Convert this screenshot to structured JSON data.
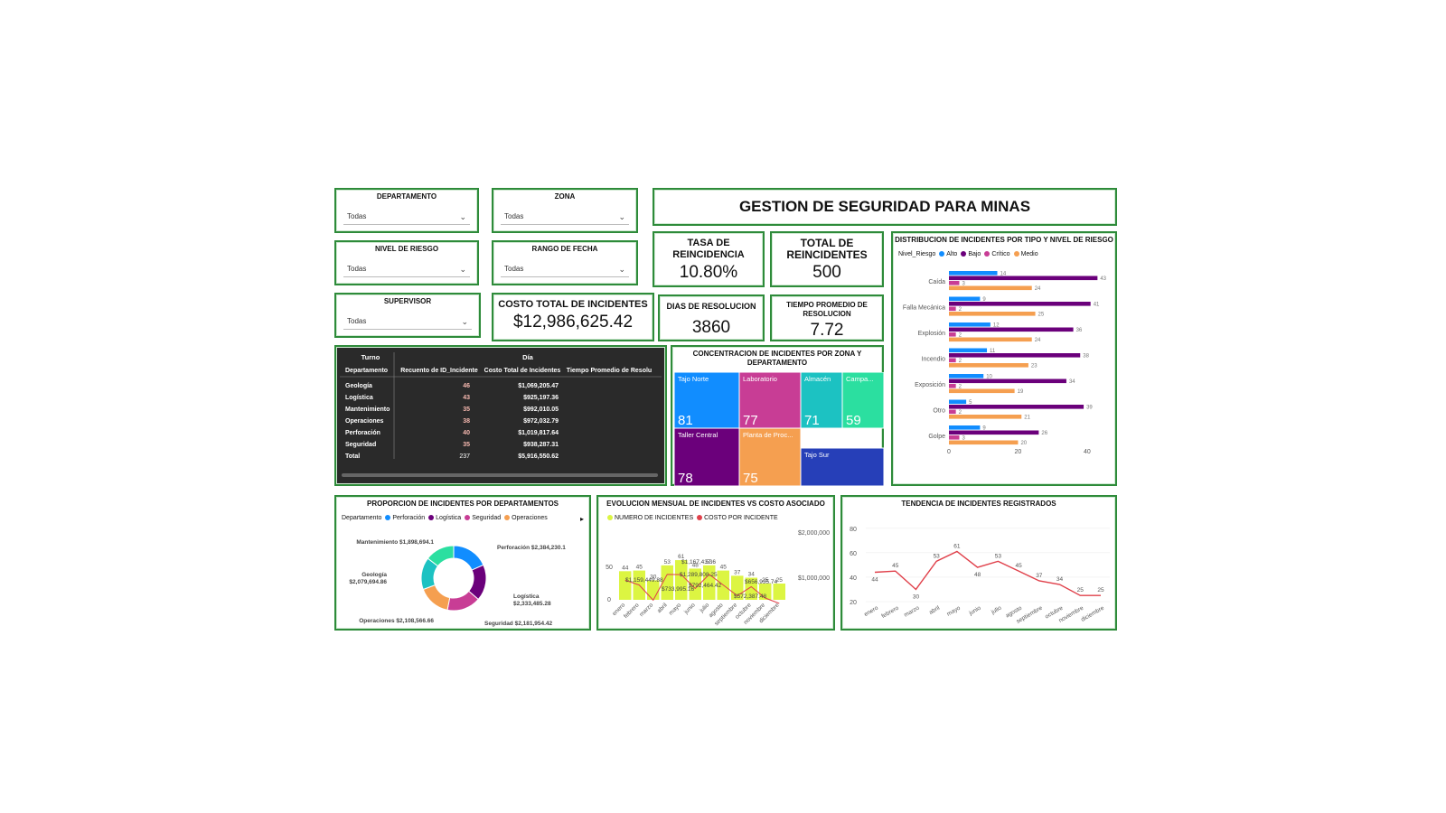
{
  "filters": [
    {
      "title": "DEPARTAMENTO",
      "value": "Todas"
    },
    {
      "title": "ZONA",
      "value": "Todas"
    },
    {
      "title": "NIVEL DE RIESGO",
      "value": "Todas"
    },
    {
      "title": "RANGO DE FECHA",
      "value": "Todas"
    },
    {
      "title": "SUPERVISOR",
      "value": "Todas"
    }
  ],
  "dashboard_title": "GESTION DE SEGURIDAD PARA MINAS",
  "kpis": {
    "tasa": {
      "label": "TASA DE REINCIDENCIA",
      "value": "10.80%"
    },
    "total_reinc": {
      "label": "TOTAL DE REINCIDENTES",
      "value": "500"
    },
    "costo": {
      "label": "COSTO TOTAL DE INCIDENTES",
      "value": "$12,986,625.42"
    },
    "dias": {
      "label": "DIAS DE RESOLUCION",
      "value": "3860"
    },
    "tiempo": {
      "label": "TIEMPO PROMEDIO DE RESOLUCION",
      "value": "7.72"
    }
  },
  "table": {
    "header_top": [
      "Turno",
      "Día"
    ],
    "columns": [
      "Departamento",
      "Recuento de ID_Incidente",
      "Costo Total de Incidentes",
      "Tiempo Promedio de Resolu"
    ],
    "rows": [
      [
        "Geología",
        "46",
        "$1,069,205.47",
        ""
      ],
      [
        "Logística",
        "43",
        "$925,197.36",
        ""
      ],
      [
        "Mantenimiento",
        "35",
        "$992,010.05",
        ""
      ],
      [
        "Operaciones",
        "38",
        "$972,032.79",
        ""
      ],
      [
        "Perforación",
        "40",
        "$1,019,817.64",
        ""
      ],
      [
        "Seguridad",
        "35",
        "$938,287.31",
        ""
      ]
    ],
    "total": [
      "Total",
      "237",
      "$5,916,550.62",
      ""
    ]
  },
  "treemap": {
    "title": "CONCENTRACION DE INCIDENTES POR ZONA Y DEPARTAMENTO",
    "tiles": [
      {
        "label": "Tajo Norte",
        "value": "81",
        "color": "#118dff"
      },
      {
        "label": "Laboratorio",
        "value": "77",
        "color": "#c83d95"
      },
      {
        "label": "Almacén",
        "value": "71",
        "color": "#1cc2c2"
      },
      {
        "label": "Campa...",
        "value": "59",
        "color": "#2bdfa0"
      },
      {
        "label": "Taller Central",
        "value": "78",
        "color": "#6b007b"
      },
      {
        "label": "Planta de Proc...",
        "value": "75",
        "color": "#f59f50"
      },
      {
        "label": "Tajo Sur",
        "value": "",
        "color": "#263fb8"
      }
    ]
  },
  "charts": [
    {
      "type": "bar",
      "orientation": "horizontal",
      "title": "DISTRIBUCION DE INCIDENTES POR TIPO Y NIVEL DE RIESGO",
      "legend_title": "Nivel_Riesgo",
      "categories": [
        "Caída",
        "Falla Mecánica",
        "Explosión",
        "Incendio",
        "Exposición",
        "Otro",
        "Golpe"
      ],
      "series": [
        {
          "name": "Alto",
          "color": "#118dff",
          "values": [
            14,
            9,
            12,
            11,
            10,
            5,
            9
          ]
        },
        {
          "name": "Bajo",
          "color": "#6b007b",
          "values": [
            43,
            41,
            36,
            38,
            34,
            39,
            26
          ]
        },
        {
          "name": "Crítico",
          "color": "#c83d95",
          "values": [
            3,
            2,
            2,
            2,
            2,
            2,
            3
          ]
        },
        {
          "name": "Medio",
          "color": "#f59f50",
          "values": [
            24,
            25,
            24,
            23,
            19,
            21,
            20
          ]
        }
      ],
      "xticks": [
        0,
        20,
        40
      ],
      "xlim": [
        0,
        45
      ]
    },
    {
      "type": "pie",
      "title": "PROPORCION DE INCIDENTES POR DEPARTAMENTOS",
      "legend_title": "Departamento",
      "legend": [
        "Perforación",
        "Logística",
        "Seguridad",
        "Operaciones"
      ],
      "slices": [
        {
          "name": "Perforación",
          "value": 2384230.1,
          "label": "Perforación $2,384,230.1",
          "color": "#118dff"
        },
        {
          "name": "Logística",
          "value": 2333485.28,
          "label": "Logística $2,333,485.28",
          "color": "#6b007b"
        },
        {
          "name": "Seguridad",
          "value": 2181954.42,
          "label": "Seguridad $2,181,954.42",
          "color": "#c83d95"
        },
        {
          "name": "Operaciones",
          "value": 2108566.66,
          "label": "Operaciones $2,108,566.66",
          "color": "#f59f50"
        },
        {
          "name": "Geología",
          "value": 2079694.86,
          "label": "Geología $2,079,694.86",
          "color": "#1cc2c2"
        },
        {
          "name": "Mantenimiento",
          "value": 1898694.1,
          "label": "Mantenimiento $1,898,694.1",
          "color": "#2bdfa0"
        }
      ]
    },
    {
      "type": "bar+line",
      "title": "EVOLUCION MENSUAL DE INCIDENTES VS COSTO ASOCIADO",
      "legend": [
        "NUMERO DE INCIDENTES",
        "COSTO POR INCIDENTE"
      ],
      "categories": [
        "enero",
        "febrero",
        "marzo",
        "abril",
        "mayo",
        "junio",
        "julio",
        "agosto",
        "septiembre",
        "octubre",
        "noviembre",
        "diciembre"
      ],
      "bars": [
        44,
        45,
        30,
        53,
        61,
        48,
        53,
        45,
        37,
        34,
        25,
        25
      ],
      "line_labels": [
        "$1,159,449.88",
        "$733,995.16",
        "$1,167,437.6",
        "$1,289,808.25",
        "$792,464.42",
        "$656,935.74",
        "$572,387.48"
      ],
      "yticks_left": [
        0,
        50
      ],
      "yticks_right": [
        "$1,000,000",
        "$2,000,000"
      ],
      "bar_color": "#dcf542",
      "line_color": "#e0404a"
    },
    {
      "type": "line",
      "title": "TENDENCIA DE INCIDENTES REGISTRADOS",
      "categories": [
        "enero",
        "febrero",
        "marzo",
        "abril",
        "mayo",
        "junio",
        "julio",
        "agosto",
        "septiembre",
        "octubre",
        "noviembre",
        "diciembre"
      ],
      "values": [
        44,
        45,
        30,
        53,
        61,
        48,
        53,
        45,
        37,
        34,
        25,
        25
      ],
      "yticks": [
        20,
        40,
        60,
        80
      ],
      "ylim": [
        20,
        85
      ],
      "color": "#e0404a"
    }
  ],
  "chart_data": [
    {
      "type": "bar",
      "title": "DISTRIBUCION DE INCIDENTES POR TIPO Y NIVEL DE RIESGO",
      "categories": [
        "Caída",
        "Falla Mecánica",
        "Explosión",
        "Incendio",
        "Exposición",
        "Otro",
        "Golpe"
      ],
      "series": [
        {
          "name": "Alto",
          "values": [
            14,
            9,
            12,
            11,
            10,
            5,
            9
          ]
        },
        {
          "name": "Bajo",
          "values": [
            43,
            41,
            36,
            38,
            34,
            39,
            26
          ]
        },
        {
          "name": "Crítico",
          "values": [
            3,
            2,
            2,
            2,
            2,
            2,
            3
          ]
        },
        {
          "name": "Medio",
          "values": [
            24,
            25,
            24,
            23,
            19,
            21,
            20
          ]
        }
      ],
      "xlim": [
        0,
        45
      ]
    },
    {
      "type": "pie",
      "title": "PROPORCION DE INCIDENTES POR DEPARTAMENTOS",
      "categories": [
        "Perforación",
        "Logística",
        "Seguridad",
        "Operaciones",
        "Geología",
        "Mantenimiento"
      ],
      "values": [
        2384230.1,
        2333485.28,
        2181954.42,
        2108566.66,
        2079694.86,
        1898694.1
      ]
    },
    {
      "type": "bar",
      "title": "EVOLUCION MENSUAL DE INCIDENTES VS COSTO ASOCIADO",
      "categories": [
        "enero",
        "febrero",
        "marzo",
        "abril",
        "mayo",
        "junio",
        "julio",
        "agosto",
        "septiembre",
        "octubre",
        "noviembre",
        "diciembre"
      ],
      "series": [
        {
          "name": "NUMERO DE INCIDENTES",
          "values": [
            44,
            45,
            30,
            53,
            61,
            48,
            53,
            45,
            37,
            34,
            25,
            25
          ]
        }
      ]
    },
    {
      "type": "line",
      "title": "TENDENCIA DE INCIDENTES REGISTRADOS",
      "categories": [
        "enero",
        "febrero",
        "marzo",
        "abril",
        "mayo",
        "junio",
        "julio",
        "agosto",
        "septiembre",
        "octubre",
        "noviembre",
        "diciembre"
      ],
      "values": [
        44,
        45,
        30,
        53,
        61,
        48,
        53,
        45,
        37,
        34,
        25,
        25
      ],
      "ylim": [
        20,
        85
      ]
    }
  ]
}
